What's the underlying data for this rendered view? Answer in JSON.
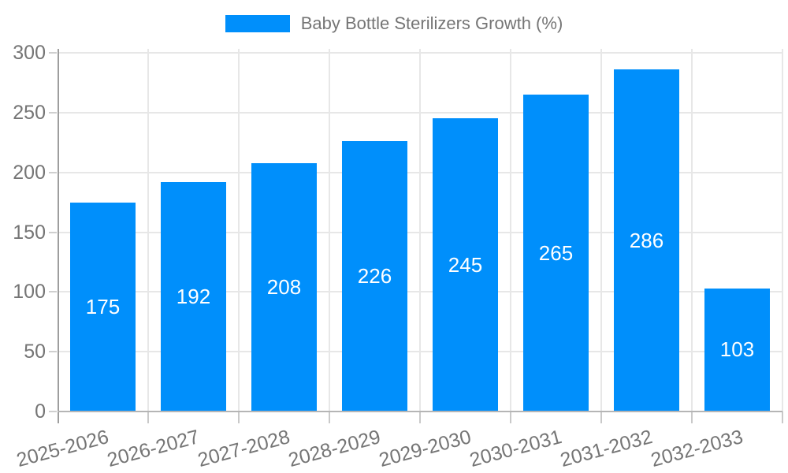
{
  "legend": {
    "label": "Baby Bottle Sterilizers Growth (%)"
  },
  "chart_data": {
    "type": "bar",
    "title": "",
    "series_name": "Baby Bottle Sterilizers Growth (%)",
    "categories": [
      "2025-2026",
      "2026-2027",
      "2027-2028",
      "2028-2029",
      "2029-2030",
      "2030-2031",
      "2031-2032",
      "2032-2033"
    ],
    "values": [
      175,
      192,
      208,
      226,
      245,
      265,
      286,
      103
    ],
    "yticks": [
      0,
      50,
      100,
      150,
      200,
      250,
      300
    ],
    "ylim": [
      0,
      300
    ],
    "xlabel": "",
    "ylabel": "",
    "legend_position": "top",
    "grid": true,
    "x_label_rotation": -15,
    "colors": {
      "bar": "#008FFB",
      "bar_label": "#ffffff",
      "axis_text": "#757575",
      "gridline": "#e7e7e7",
      "y_axis_line": "#9e9e9e",
      "x_axis_line": "#b5b5b5"
    }
  }
}
